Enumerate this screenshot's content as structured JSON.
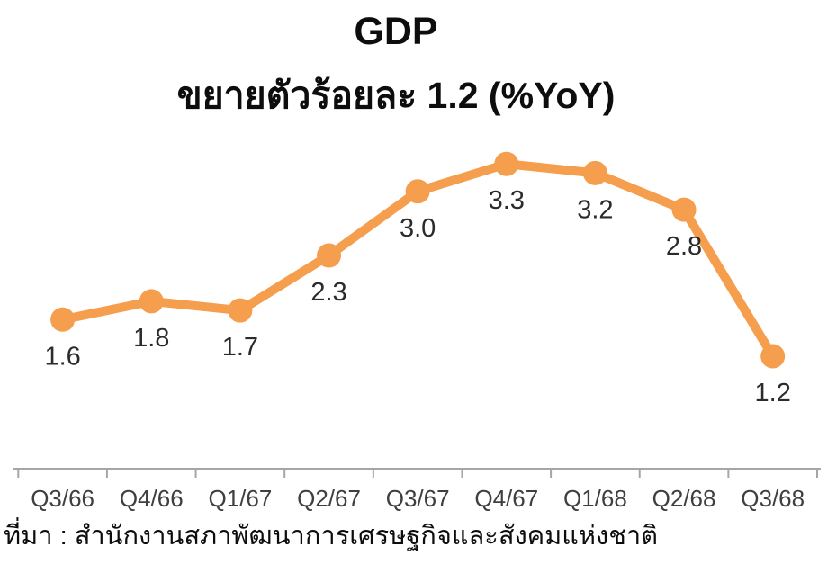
{
  "header": {
    "title": "GDP",
    "subtitle": "ขยายตัวร้อยละ 1.2 (%YoY)"
  },
  "chart_data": {
    "type": "line",
    "title": "GDP",
    "subtitle": "ขยายตัวร้อยละ 1.2 (%YoY)",
    "categories": [
      "Q3/66",
      "Q4/66",
      "Q1/67",
      "Q2/67",
      "Q3/67",
      "Q4/67",
      "Q1/68",
      "Q2/68",
      "Q3/68"
    ],
    "values": [
      1.6,
      1.8,
      1.7,
      2.3,
      3.0,
      3.3,
      3.2,
      2.8,
      1.2
    ],
    "data_labels": [
      "1.6",
      "1.8",
      "1.7",
      "2.3",
      "3.0",
      "3.3",
      "3.2",
      "2.8",
      "1.2"
    ],
    "series_name": "GDP %YoY",
    "xlabel": "",
    "ylabel": "",
    "ylim": [
      1.0,
      3.5
    ],
    "grid": false,
    "legend_position": "none",
    "line_color": "#F49E4E",
    "marker_color": "#F49E4E",
    "axis_color": "#A6A6A6",
    "value_label_color": "#2b2b2b",
    "tick_label_color": "#3f3f3f"
  },
  "footer": {
    "source": "ที่มา : สำนักงานสภาพัฒนาการเศรษฐกิจและสังคมแห่งชาติ"
  }
}
